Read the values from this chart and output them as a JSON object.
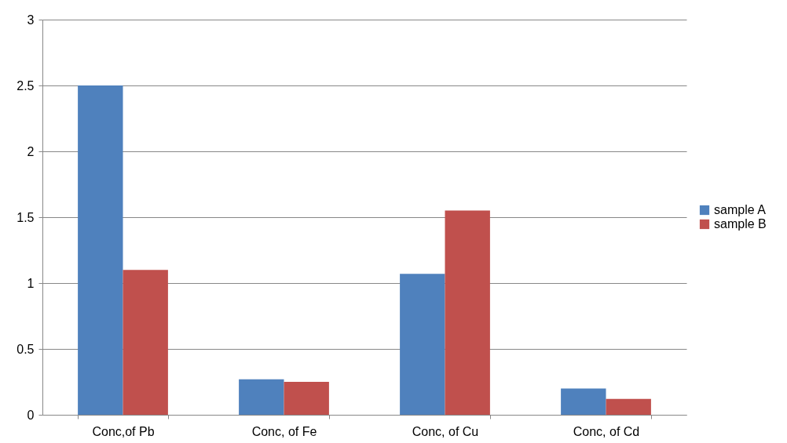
{
  "chart_data": {
    "type": "bar",
    "categories": [
      "Conc,of Pb",
      "Conc, of Fe",
      "Conc, of Cu",
      "Conc, of Cd"
    ],
    "series": [
      {
        "name": "sample A",
        "color": "#4f81bd",
        "values": [
          2.5,
          0.27,
          1.07,
          0.2
        ]
      },
      {
        "name": "sample B",
        "color": "#c0504d",
        "values": [
          1.1,
          0.25,
          1.55,
          0.12
        ]
      }
    ],
    "ylim": [
      0,
      3
    ],
    "yticks": [
      0,
      0.5,
      1,
      1.5,
      2,
      2.5,
      3
    ],
    "grid": "y",
    "legend": "right"
  }
}
